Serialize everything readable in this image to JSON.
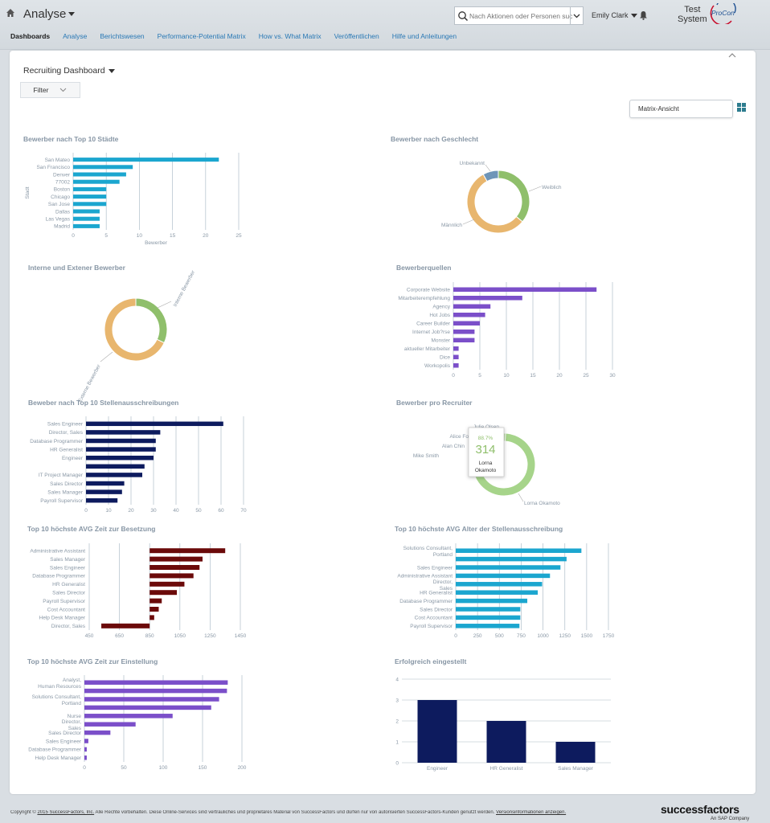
{
  "header": {
    "app_title": "Analyse",
    "search_placeholder": "Nach Aktionen oder Personen suchen",
    "user_name": "Emily Clark",
    "company_line1": "Test",
    "company_line2": "System",
    "logo_text": "ProCon"
  },
  "nav": {
    "items": [
      "Dashboards",
      "Analyse",
      "Berichtswesen",
      "Performance-Potential Matrix",
      "How vs. What Matrix",
      "Veröffentlichen",
      "Hilfe und Anleitungen"
    ]
  },
  "dashboard": {
    "title": "Recruiting Dashboard",
    "filter_label": "Filter",
    "matrix_label": "Matrix-Ansicht"
  },
  "colors": {
    "cyan": "#1ba6cf",
    "navy": "#0d1b5e",
    "purple": "#7b4fc9",
    "maroon": "#6b0a0a",
    "green": "#8fbf6b",
    "tan": "#e8b66e",
    "steel": "#6e95b8",
    "light_green": "#a6d48a",
    "nav_link": "#2978b5"
  },
  "chart_data": [
    {
      "id": "staedte",
      "type": "bar",
      "title": "Bewerber nach Top 10 Städte",
      "categories": [
        "San Mateo",
        "San Francisco",
        "Denver",
        "77002",
        "Boston",
        "Chicago",
        "San Jose",
        "Dallas",
        "Las Vegas",
        "Madrid"
      ],
      "values": [
        22,
        9,
        8,
        7,
        5,
        5,
        5,
        4,
        4,
        4
      ],
      "xlim": [
        0,
        25
      ],
      "xticks": [
        0,
        5,
        10,
        15,
        20,
        25
      ],
      "xlabel": "Bewerber",
      "ylabel": "Stadt",
      "color": "#1ba6cf"
    },
    {
      "id": "geschlecht",
      "type": "pie",
      "title": "Bewerber nach Geschlecht",
      "categories": [
        "Weiblich",
        "Männlich",
        "Unbekannt"
      ],
      "values": [
        36,
        56,
        8
      ],
      "colors": [
        "#8fbf6b",
        "#e8b66e",
        "#6e95b8"
      ]
    },
    {
      "id": "intern",
      "type": "pie",
      "title": "Interne und Extener Bewerber",
      "categories": [
        "Interne Bewerber",
        "Externe Bewerber"
      ],
      "values": [
        32,
        68
      ],
      "colors": [
        "#8fbf6b",
        "#e8b66e"
      ]
    },
    {
      "id": "quellen",
      "type": "bar",
      "title": "Bewerberquellen",
      "categories": [
        "Corporate Website",
        "Mitarbeiterempfehlung",
        "Agency",
        "Hot Jobs",
        "Career Builder",
        "Internet Job?rse",
        "Monster",
        "aktueller Mitarbeiter",
        "Dice",
        "Workopolis"
      ],
      "values": [
        27,
        13,
        7,
        6,
        5,
        4,
        4,
        1,
        1,
        1
      ],
      "xlim": [
        0,
        30
      ],
      "xticks": [
        0,
        5,
        10,
        15,
        20,
        25,
        30
      ],
      "color": "#7b4fc9"
    },
    {
      "id": "stellen",
      "type": "bar",
      "title": "Beweber nach Top 10 Stellenausschreibungen",
      "categories": [
        "Sales Engineer",
        "Director, Sales",
        "Database Programmer",
        "HR Generalist",
        "Engineer",
        "",
        "IT Project Manager",
        "Sales Director",
        "Sales Manager",
        "Payroll Supervisor"
      ],
      "values": [
        61,
        33,
        31,
        31,
        30,
        26,
        25,
        17,
        16,
        14
      ],
      "xlim": [
        0,
        70
      ],
      "xticks": [
        0,
        10,
        20,
        30,
        40,
        50,
        60,
        70
      ],
      "color": "#0d1b5e"
    },
    {
      "id": "recruiter",
      "type": "pie",
      "title": "Bewerber pro Recruiter",
      "categories": [
        "Lorna Okamoto",
        "Mike Smith",
        "Alan Chin",
        "Alice Fo",
        "Julie Olsen"
      ],
      "values": [
        88.7,
        3,
        3,
        3,
        2.3
      ],
      "tooltip": {
        "percent": "88.7%",
        "value": "314",
        "name_line1": "Lorna",
        "name_line2": "Okamoto"
      },
      "colors": [
        "#a6d48a",
        "#a6d48a",
        "#a6d48a",
        "#a6d48a",
        "#a6d48a"
      ]
    },
    {
      "id": "besetzung",
      "type": "bar",
      "title": "Top 10 höchste AVG Zeit zur Besetzung",
      "categories": [
        "Administrative Assistant",
        "Sales Manager",
        "Sales Engineer",
        "Database Programmer",
        "HR Generalist",
        "Sales Director",
        "Payroll Supervisor",
        "Cost Accountant",
        "Help Desk Manager",
        "Director, Sales"
      ],
      "values": [
        1350,
        1200,
        1180,
        1140,
        1080,
        1030,
        930,
        910,
        880,
        530
      ],
      "baseline": 850,
      "xlim": [
        450,
        1450
      ],
      "xticks": [
        450,
        650,
        850,
        1050,
        1250,
        1450
      ],
      "color": "#6b0a0a"
    },
    {
      "id": "alter",
      "type": "bar",
      "title": "Top 10 höchste AVG Alter der Stellenausschreibung",
      "categories": [
        "Solutions Consultant, Portland",
        "",
        "Sales Engineer",
        "Administrative Assistant",
        "Director, Sales",
        "HR Generalist",
        "Database Programmer",
        "Sales Director",
        "Cost Accountant",
        "Payroll Supervisor"
      ],
      "values": [
        1440,
        1270,
        1200,
        1080,
        990,
        940,
        820,
        740,
        740,
        730
      ],
      "xlim": [
        0,
        1750
      ],
      "xticks": [
        0,
        250,
        500,
        750,
        1000,
        1250,
        1500,
        1750
      ],
      "color": "#1ba6cf"
    },
    {
      "id": "einstellung",
      "type": "bar",
      "title": "Top 10 höchste AVG Zeit zur Einstellung",
      "categories": [
        "Analyst, Human Resources",
        "",
        "Solutions Consultant, Portland",
        "",
        "Nurse",
        "Director, Sales",
        "Sales Director",
        "Sales Engineer",
        "Database Programmer",
        "Help Desk Manager"
      ],
      "values": [
        182,
        181,
        171,
        161,
        112,
        65,
        33,
        5,
        3,
        3
      ],
      "xlim": [
        0,
        200
      ],
      "xticks": [
        0,
        50,
        100,
        150,
        200
      ],
      "color": "#7b4fc9"
    },
    {
      "id": "erfolgreich",
      "type": "bar",
      "title": "Erfolgreich eingestellt",
      "categories": [
        "Engineer",
        "HR Generalist",
        "Sales Manager"
      ],
      "values": [
        3,
        2,
        1
      ],
      "ylim": [
        0,
        4
      ],
      "yticks": [
        0,
        1,
        2,
        3,
        4
      ],
      "color": "#0d1b5e"
    }
  ],
  "footer": {
    "copyright": "Copyright © ",
    "company_link": "2015 SuccessFactors, Inc.",
    "text": " Alle Rechte vorbehalten. Diese Online-Services sind vertrauliches und proprietäres Material von SuccessFactors und dürfen nur von autorisierten SuccessFactors-Kunden genutzt werden. ",
    "version_link": "Versionsinformationen anzeigen.",
    "brand": "successfactors",
    "brand_sub": "An SAP Company"
  }
}
